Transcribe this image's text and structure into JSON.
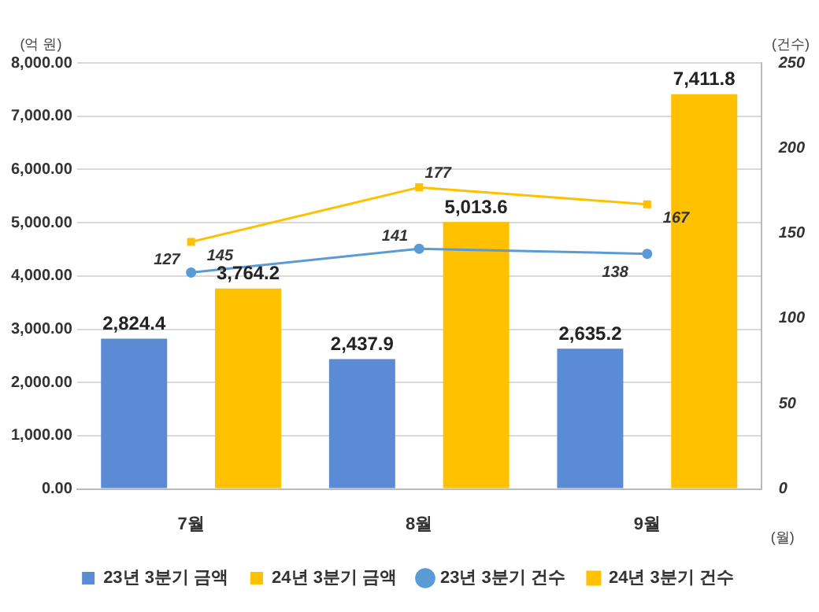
{
  "chart_data": {
    "type": "bar",
    "ylabel": "(억 원)",
    "y2label": "(건수)",
    "xlabel": "(월)",
    "categories": [
      "7월",
      "8월",
      "9월"
    ],
    "series": [
      {
        "name": "23년 3분기 금액",
        "color": "#5b8bd4",
        "values": [
          2824.4,
          2437.9,
          2635.2
        ],
        "value_labels": [
          "2,824.4",
          "2,437.9",
          "2,635.2"
        ]
      },
      {
        "name": "24년 3분기 금액",
        "color": "#ffc000",
        "values": [
          3764.2,
          5013.6,
          7411.8
        ],
        "value_labels": [
          "3,764.2",
          "5,013.6",
          "7,411.8"
        ]
      },
      {
        "name": "23년 3분기 건수",
        "type": "line",
        "axis": "y2",
        "color": "#5b9bd5",
        "marker": "circle",
        "values": [
          127,
          141,
          138
        ]
      },
      {
        "name": "24년 3분기 건수",
        "type": "line",
        "axis": "y2",
        "color": "#ffc000",
        "marker": "square",
        "values": [
          145,
          177,
          167
        ]
      }
    ],
    "ylim": [
      0,
      8000
    ],
    "yticks": [
      {
        "value": 0,
        "label": "0.00"
      },
      {
        "value": 1000,
        "label": "1,000.00"
      },
      {
        "value": 2000,
        "label": "2,000.00"
      },
      {
        "value": 3000,
        "label": "3,000.00"
      },
      {
        "value": 4000,
        "label": "4,000.00"
      },
      {
        "value": 5000,
        "label": "5,000.00"
      },
      {
        "value": 6000,
        "label": "6,000.00"
      },
      {
        "value": 7000,
        "label": "7,000.00"
      },
      {
        "value": 8000,
        "label": "8,000.00"
      }
    ],
    "y2lim": [
      0,
      250
    ],
    "y2ticks": [
      0,
      50,
      100,
      150,
      200,
      250
    ],
    "grid": "y",
    "legend": "bottom",
    "data_labels": true
  }
}
